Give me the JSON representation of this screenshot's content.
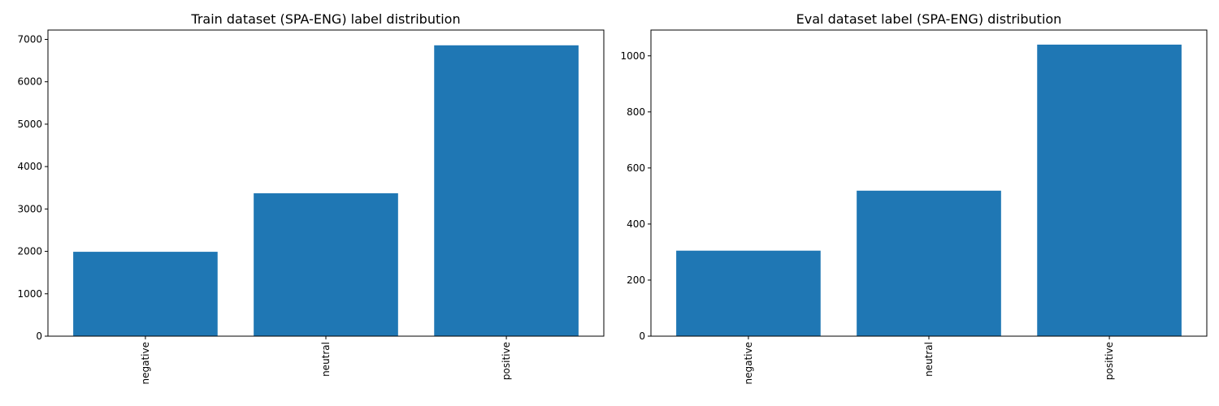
{
  "chart_data": [
    {
      "type": "bar",
      "title": "Train dataset (SPA-ENG) label distribution",
      "categories": [
        "negative",
        "neutral",
        "positive"
      ],
      "values": [
        1990,
        3370,
        6860
      ],
      "ylim": [
        0,
        7220
      ],
      "yticks": [
        0,
        1000,
        2000,
        3000,
        4000,
        5000,
        6000,
        7000
      ],
      "xlabel": "",
      "ylabel": "",
      "xtick_rotation": 90,
      "color": "#1f77b4",
      "grid": false
    },
    {
      "type": "bar",
      "title": "Eval dataset label (SPA-ENG) distribution",
      "categories": [
        "negative",
        "neutral",
        "positive"
      ],
      "values": [
        305,
        519,
        1040
      ],
      "ylim": [
        0,
        1092
      ],
      "yticks": [
        0,
        200,
        400,
        600,
        800,
        1000
      ],
      "xlabel": "",
      "ylabel": "",
      "xtick_rotation": 90,
      "color": "#1f77b4",
      "grid": false
    }
  ]
}
